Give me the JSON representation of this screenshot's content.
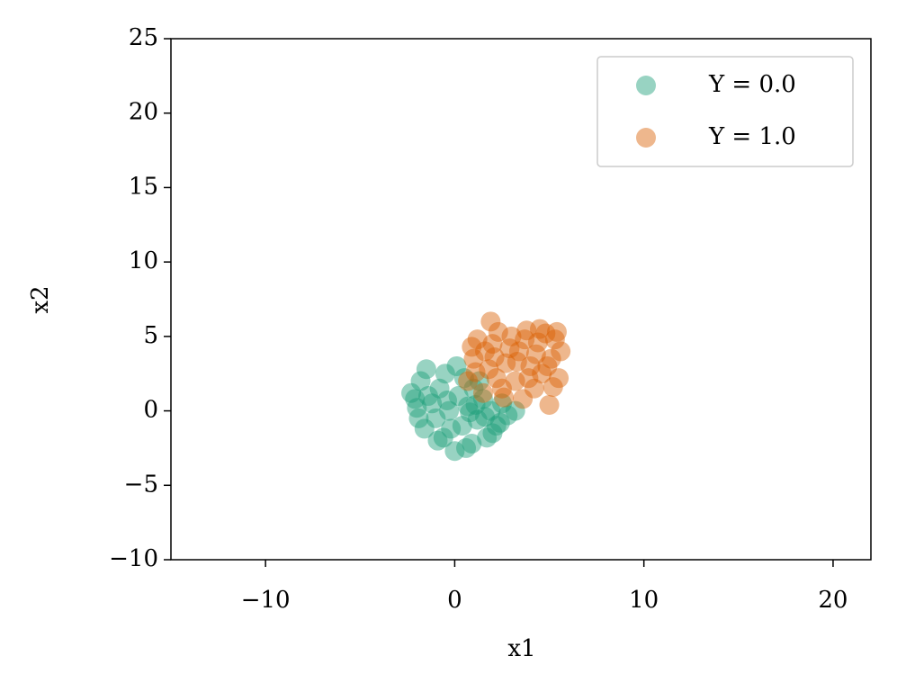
{
  "chart_data": {
    "type": "scatter",
    "x_label": "x1",
    "y_label": "x2",
    "xlim": [
      -15,
      22
    ],
    "ylim": [
      -10,
      25
    ],
    "xticks": [
      {
        "value": -10,
        "label": "−10"
      },
      0,
      10,
      20
    ],
    "yticks": [
      {
        "value": -10,
        "label": "−10"
      },
      {
        "value": -5,
        "label": "−5"
      },
      0,
      5,
      10,
      15,
      20,
      25
    ],
    "legend": "upper right",
    "series": [
      {
        "name": "Y = 0.0",
        "color": "#1b9e77",
        "x": [
          -2.3,
          -2.0,
          -1.8,
          -1.5,
          -1.6,
          -1.2,
          -1.0,
          -0.8,
          -0.5,
          -0.6,
          -0.3,
          0.0,
          0.2,
          0.4,
          0.5,
          0.7,
          0.9,
          1.0,
          1.2,
          1.5,
          1.7,
          1.9,
          2.2,
          2.5,
          2.8,
          3.2,
          -1.9,
          -1.4,
          -0.9,
          0.1,
          0.6,
          1.3,
          2.0,
          -2.1,
          -0.2,
          0.8,
          1.6,
          -0.4,
          2.4,
          1.1
        ],
        "values": [
          1.2,
          0.2,
          2.0,
          2.8,
          -1.2,
          0.5,
          -0.5,
          1.5,
          2.5,
          -1.8,
          0.0,
          -2.7,
          1.0,
          -1.0,
          2.2,
          0.3,
          -2.2,
          1.5,
          -0.6,
          0.8,
          -1.8,
          0.0,
          -1.0,
          0.5,
          -0.3,
          0.0,
          -0.5,
          1.0,
          -2.0,
          3.0,
          -2.5,
          2.0,
          -1.5,
          0.8,
          -1.2,
          -0.1,
          -0.4,
          0.7,
          -0.8,
          0.4
        ]
      },
      {
        "name": "Y = 1.0",
        "color": "#d95f02",
        "x": [
          1.9,
          0.7,
          1.0,
          1.2,
          1.5,
          1.8,
          2.0,
          2.3,
          2.5,
          2.7,
          3.0,
          3.2,
          3.4,
          3.6,
          3.8,
          4.0,
          4.2,
          4.4,
          4.6,
          4.8,
          5.0,
          5.1,
          5.3,
          5.5,
          5.6,
          5.4,
          1.1,
          1.6,
          2.2,
          2.9,
          3.3,
          3.9,
          4.3,
          4.9,
          5.2,
          0.9,
          2.6,
          3.7,
          4.5,
          2.1
        ],
        "values": [
          6.0,
          2.0,
          3.5,
          4.8,
          1.2,
          2.8,
          4.5,
          5.3,
          1.5,
          3.2,
          5.0,
          2.0,
          4.0,
          0.8,
          5.4,
          3.0,
          1.5,
          4.6,
          2.5,
          5.2,
          0.4,
          3.5,
          4.8,
          2.2,
          4.0,
          5.3,
          2.6,
          4.0,
          2.2,
          4.2,
          3.3,
          2.2,
          3.8,
          3.0,
          1.6,
          4.3,
          0.9,
          4.8,
          5.5,
          3.6
        ]
      }
    ]
  }
}
